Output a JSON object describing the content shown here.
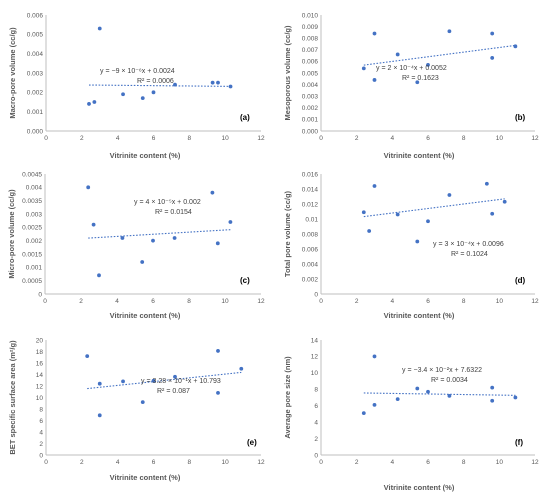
{
  "colors": {
    "point": "#4472C4",
    "trend": "#4472C4",
    "axis": "#BFBFBF",
    "text": "#595959"
  },
  "chart_data": [
    {
      "type": "scatter",
      "panel": "(a)",
      "xlabel": "Vitrinite content (%)",
      "ylabel": "Macro-pore volume (cc/g)",
      "xlim": [
        0,
        12
      ],
      "xticks": [
        0,
        2,
        4,
        6,
        8,
        10,
        12
      ],
      "xtick_labels": [
        "0",
        "2",
        "4",
        "6",
        "8",
        "10",
        "12"
      ],
      "ylim": [
        0,
        0.006
      ],
      "yticks": [
        0,
        0.001,
        0.002,
        0.003,
        0.004,
        0.005,
        0.006
      ],
      "ytick_labels": [
        "0.000",
        "0.001",
        "0.002",
        "0.003",
        "0.004",
        "0.005",
        "0.006"
      ],
      "x": [
        2.4,
        2.7,
        3.0,
        4.3,
        5.4,
        6.0,
        7.2,
        9.3,
        9.6,
        10.3
      ],
      "y": [
        0.0014,
        0.0015,
        0.0053,
        0.0019,
        0.0017,
        0.002,
        0.0024,
        0.0025,
        0.0025,
        0.0023
      ],
      "trendline": {
        "slope": -9e-06,
        "intercept": 0.0024,
        "x": [
          2.4,
          10.3
        ]
      },
      "equation": "y = −9 × 10⁻⁶x + 0.0024",
      "r2": "R² = 0.0006",
      "legend": "none",
      "grid": false
    },
    {
      "type": "scatter",
      "panel": "(b)",
      "xlabel": "Vitrinite content (%)",
      "ylabel": "Mesoporous volume (cc/g)",
      "xlim": [
        0,
        12
      ],
      "xticks": [
        0,
        2,
        4,
        6,
        8,
        10,
        12
      ],
      "xtick_labels": [
        "0",
        "2",
        "4",
        "6",
        "8",
        "10",
        "12"
      ],
      "ylim": [
        0,
        0.01
      ],
      "yticks": [
        0,
        0.001,
        0.002,
        0.003,
        0.004,
        0.005,
        0.006,
        0.007,
        0.008,
        0.009,
        0.01
      ],
      "ytick_labels": [
        "0.000",
        "0.001",
        "0.002",
        "0.003",
        "0.004",
        "0.005",
        "0.006",
        "0.007",
        "0.008",
        "0.009",
        "0.010"
      ],
      "x": [
        2.4,
        3.0,
        3.0,
        4.3,
        5.4,
        6.0,
        7.2,
        9.6,
        9.6,
        10.9
      ],
      "y": [
        0.0054,
        0.0084,
        0.0044,
        0.0066,
        0.0042,
        0.0057,
        0.0086,
        0.0084,
        0.0063,
        0.0073
      ],
      "trendline": {
        "slope": 0.0002,
        "intercept": 0.0052,
        "x": [
          2.4,
          10.9
        ]
      },
      "equation": "y = 2 × 10⁻⁴x + 0.0052",
      "r2": "R² = 0.1623",
      "legend": "none",
      "grid": false
    },
    {
      "type": "scatter",
      "panel": "(c)",
      "xlabel": "Vitrinite content (%)",
      "ylabel": "Micro-pore volume (cc/g)",
      "xlim": [
        0,
        12
      ],
      "xticks": [
        0,
        2,
        4,
        6,
        8,
        10,
        12
      ],
      "xtick_labels": [
        "0",
        "2",
        "4",
        "6",
        "8",
        "10",
        "12"
      ],
      "ylim": [
        0,
        0.0045
      ],
      "yticks": [
        0,
        0.0005,
        0.001,
        0.0015,
        0.002,
        0.0025,
        0.003,
        0.0035,
        0.004,
        0.0045
      ],
      "ytick_labels": [
        "0",
        "0.0005",
        "0.001",
        "0.0015",
        "0.002",
        "0.0025",
        "0.003",
        "0.0035",
        "0.004",
        "0.0045"
      ],
      "x": [
        2.4,
        2.7,
        3.0,
        4.3,
        5.4,
        6.0,
        7.2,
        9.3,
        9.6,
        10.3
      ],
      "y": [
        0.004,
        0.0026,
        0.0007,
        0.0021,
        0.0012,
        0.002,
        0.0021,
        0.0038,
        0.0019,
        0.0027
      ],
      "trendline": {
        "slope": 4e-05,
        "intercept": 0.002,
        "x": [
          2.4,
          10.3
        ]
      },
      "equation": "y = 4 × 10⁻⁵x + 0.002",
      "r2": "R² = 0.0154",
      "legend": "none",
      "grid": false
    },
    {
      "type": "scatter",
      "panel": "(d)",
      "xlabel": "Vitrinite content (%)",
      "ylabel": "Total pore volume (cc/g)",
      "xlim": [
        0,
        12
      ],
      "xticks": [
        0,
        2,
        4,
        6,
        8,
        10,
        12
      ],
      "xtick_labels": [
        "0",
        "2",
        "4",
        "6",
        "8",
        "10",
        "12"
      ],
      "ylim": [
        0,
        0.016
      ],
      "yticks": [
        0,
        0.002,
        0.004,
        0.006,
        0.008,
        0.01,
        0.012,
        0.014,
        0.016
      ],
      "ytick_labels": [
        "0",
        "0.002",
        "0.004",
        "0.006",
        "0.008",
        "0.01",
        "0.012",
        "0.014",
        "0.016"
      ],
      "x": [
        2.4,
        2.7,
        3.0,
        4.3,
        5.4,
        6.0,
        7.2,
        9.3,
        9.6,
        10.3
      ],
      "y": [
        0.0109,
        0.0084,
        0.0144,
        0.0106,
        0.007,
        0.0097,
        0.0132,
        0.0147,
        0.0107,
        0.0123
      ],
      "trendline": {
        "slope": 0.0003,
        "intercept": 0.0096,
        "x": [
          2.4,
          10.3
        ]
      },
      "equation": "y = 3 × 10⁻⁴x + 0.0096",
      "r2": "R² = 0.1024",
      "legend": "none",
      "grid": false
    },
    {
      "type": "scatter",
      "panel": "(e)",
      "xlabel": "Vitrinite content (%)",
      "ylabel": "BET specific surface area (m²/g)",
      "xlim": [
        0,
        12
      ],
      "xticks": [
        0,
        2,
        4,
        6,
        8,
        10,
        12
      ],
      "xtick_labels": [
        "0",
        "2",
        "4",
        "6",
        "8",
        "10",
        "12"
      ],
      "ylim": [
        0,
        20
      ],
      "yticks": [
        0,
        2,
        4,
        6,
        8,
        10,
        12,
        14,
        16,
        18,
        20
      ],
      "ytick_labels": [
        "0",
        "2",
        "4",
        "6",
        "8",
        "10",
        "12",
        "14",
        "16",
        "18",
        "20"
      ],
      "x": [
        2.3,
        3.0,
        3.0,
        4.3,
        5.4,
        6.0,
        7.2,
        9.6,
        9.6,
        10.9
      ],
      "y": [
        17.2,
        12.4,
        6.9,
        12.8,
        9.2,
        12.9,
        13.6,
        18.1,
        10.8,
        15.0
      ],
      "trendline": {
        "slope": 0.328,
        "intercept": 10.793,
        "x": [
          2.3,
          10.9
        ]
      },
      "equation": "y = 3.28 × 10⁻¹x + 10.793",
      "r2": "R² = 0.087",
      "legend": "none",
      "grid": false
    },
    {
      "type": "scatter",
      "panel": "(f)",
      "xlabel": "Vitrinite content (%)",
      "ylabel": "Average pore size (nm)",
      "xlim": [
        0,
        12
      ],
      "xticks": [
        0,
        2,
        4,
        6,
        8,
        10,
        12
      ],
      "xtick_labels": [
        "0",
        "2",
        "4",
        "6",
        "8",
        "10",
        "12"
      ],
      "ylim": [
        0,
        14
      ],
      "yticks": [
        0,
        2,
        4,
        6,
        8,
        10,
        12,
        14
      ],
      "ytick_labels": [
        "0",
        "2",
        "4",
        "6",
        "8",
        "10",
        "12",
        "14"
      ],
      "x": [
        2.4,
        3.0,
        3.0,
        4.3,
        5.4,
        6.0,
        7.2,
        9.6,
        9.6,
        10.9
      ],
      "y": [
        5.1,
        12.0,
        6.1,
        6.8,
        8.1,
        7.7,
        7.2,
        8.2,
        6.6,
        7.0
      ],
      "trendline": {
        "slope": -0.034,
        "intercept": 7.6322,
        "x": [
          2.4,
          10.9
        ]
      },
      "equation": "y = −3.4 × 10⁻²x + 7.6322",
      "r2": "R² = 0.0034",
      "legend": "none",
      "grid": false
    }
  ]
}
